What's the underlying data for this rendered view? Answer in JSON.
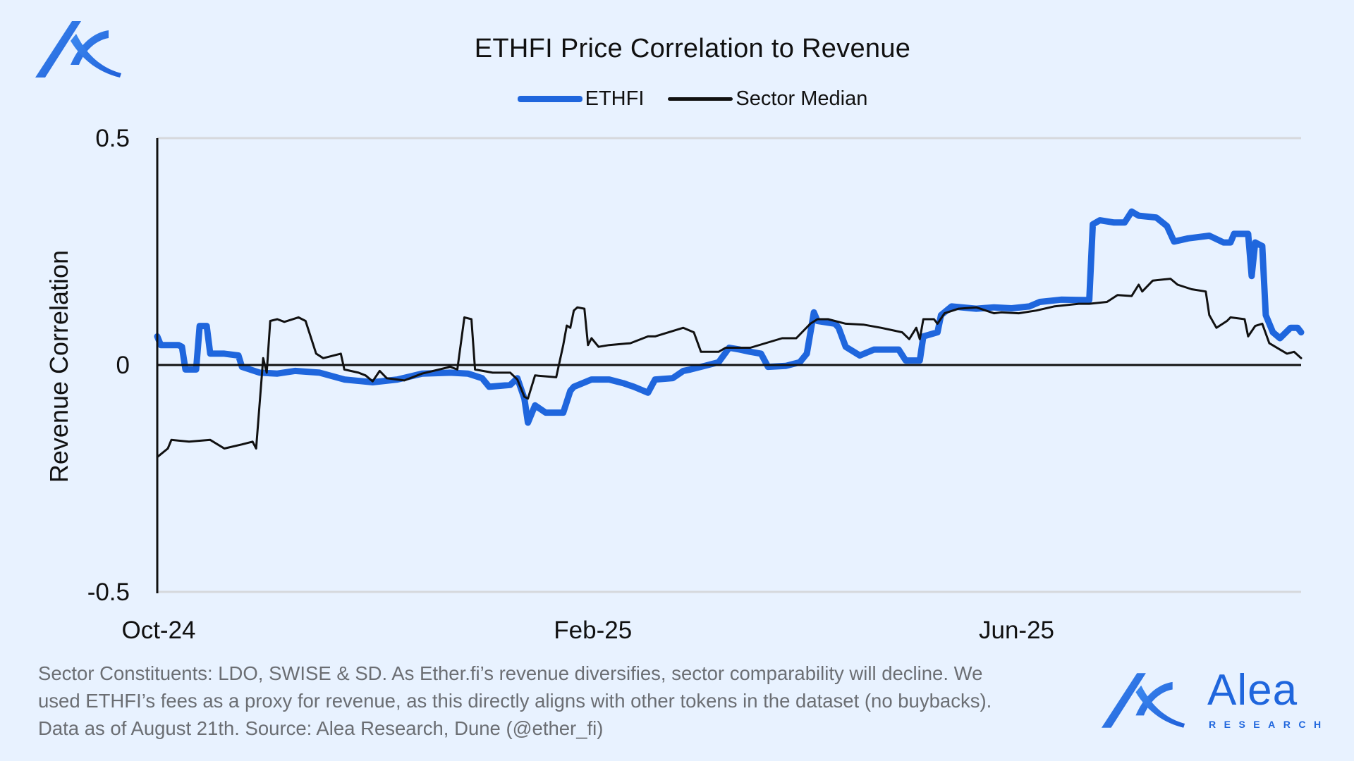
{
  "branding": {
    "name": "Alea",
    "subtitle": "RESEARCH",
    "accent_color": "#1f66dd",
    "logo_icon": "alea-logo-icon"
  },
  "footer": {
    "lines": [
      "Sector Constituents: LDO, SWISE & SD. As Ether.fi’s revenue diversifies, sector comparability will decline. We",
      "used ETHFI’s fees as a proxy for revenue, as this directly aligns with other tokens in the dataset (no buybacks).",
      "Data as of August 21th. Source: Alea Research, Dune (@ether_fi)"
    ]
  },
  "chart_data": {
    "type": "line",
    "title": "ETHFI Price Correlation to Revenue",
    "xlabel": "",
    "ylabel": "Revenue Correlation",
    "x_unit": "days since Oct 1, 2024",
    "xlim": [
      0,
      324
    ],
    "ylim": [
      -0.5,
      0.5
    ],
    "yticks": [
      {
        "value": 0.5,
        "label": "0.5"
      },
      {
        "value": 0,
        "label": "0"
      },
      {
        "value": -0.5,
        "label": "-0.5"
      }
    ],
    "xticks": [
      {
        "value": 0,
        "label": "Oct-24"
      },
      {
        "value": 123,
        "label": "Feb-25"
      },
      {
        "value": 243,
        "label": "Jun-25"
      }
    ],
    "grid": "horizontal",
    "legend_position": "top-center",
    "series": [
      {
        "name": "ETHFI",
        "color": "#1f66dd",
        "x": [
          0,
          1,
          6,
          7,
          8,
          11,
          12,
          14,
          15,
          19,
          23,
          24,
          29,
          34,
          39,
          46,
          53,
          61,
          68,
          75,
          83,
          88,
          92,
          94,
          100,
          102,
          104,
          105,
          107,
          110,
          115,
          117,
          118,
          123,
          128,
          132,
          135,
          139,
          141,
          146,
          149,
          151,
          155,
          159,
          162,
          165,
          168,
          171,
          173,
          178,
          182,
          184,
          186,
          187,
          192,
          193,
          195,
          199,
          203,
          210,
          212,
          216,
          217,
          221,
          222,
          225,
          232,
          237,
          242,
          247,
          250,
          256,
          264,
          265,
          267,
          271,
          274,
          276,
          278,
          283,
          286,
          288,
          292,
          298,
          302,
          304,
          305,
          309,
          310,
          311,
          313,
          314,
          316,
          318,
          321,
          323,
          324
        ],
        "values": [
          0.063,
          0.044,
          0.044,
          0.04,
          -0.01,
          -0.01,
          0.086,
          0.086,
          0.025,
          0.025,
          0.021,
          -0.004,
          -0.017,
          -0.019,
          -0.013,
          -0.017,
          -0.032,
          -0.038,
          -0.032,
          -0.019,
          -0.017,
          -0.019,
          -0.029,
          -0.048,
          -0.044,
          -0.029,
          -0.074,
          -0.127,
          -0.089,
          -0.105,
          -0.105,
          -0.057,
          -0.048,
          -0.032,
          -0.032,
          -0.04,
          -0.048,
          -0.061,
          -0.032,
          -0.029,
          -0.013,
          -0.01,
          -0.002,
          0.006,
          0.038,
          0.034,
          0.029,
          0.025,
          -0.004,
          -0.002,
          0.006,
          0.025,
          0.116,
          0.097,
          0.091,
          0.082,
          0.04,
          0.021,
          0.034,
          0.034,
          0.01,
          0.01,
          0.063,
          0.072,
          0.11,
          0.129,
          0.124,
          0.127,
          0.125,
          0.129,
          0.139,
          0.144,
          0.143,
          0.31,
          0.319,
          0.314,
          0.314,
          0.338,
          0.329,
          0.325,
          0.306,
          0.272,
          0.279,
          0.285,
          0.27,
          0.27,
          0.289,
          0.289,
          0.196,
          0.27,
          0.262,
          0.11,
          0.072,
          0.059,
          0.082,
          0.082,
          0.072
        ]
      },
      {
        "name": "Sector Median",
        "color": "#111111",
        "x": [
          0,
          3,
          4,
          9,
          15,
          19,
          24,
          27,
          28,
          30,
          31,
          32,
          34,
          36,
          40,
          42,
          45,
          47,
          52,
          53,
          57,
          59,
          61,
          63,
          65,
          70,
          75,
          83,
          85,
          87,
          89,
          90,
          95,
          100,
          102,
          104,
          105,
          107,
          113,
          115,
          116,
          117,
          118,
          119,
          121,
          122,
          123,
          125,
          128,
          134,
          139,
          141,
          149,
          152,
          154,
          159,
          161,
          168,
          177,
          181,
          185,
          187,
          190,
          195,
          200,
          205,
          211,
          213,
          215,
          216,
          217,
          220,
          221,
          223,
          227,
          232,
          237,
          239,
          244,
          249,
          254,
          261,
          264,
          269,
          272,
          276,
          278,
          279,
          282,
          287,
          289,
          293,
          297,
          298,
          300,
          303,
          304,
          308,
          309,
          311,
          313,
          315,
          318,
          320,
          322,
          324
        ],
        "values": [
          -0.203,
          -0.184,
          -0.165,
          -0.169,
          -0.165,
          -0.184,
          -0.175,
          -0.169,
          -0.184,
          0.015,
          -0.017,
          0.097,
          0.101,
          0.095,
          0.105,
          0.097,
          0.025,
          0.015,
          0.025,
          -0.01,
          -0.017,
          -0.023,
          -0.036,
          -0.013,
          -0.029,
          -0.034,
          -0.019,
          -0.004,
          -0.01,
          0.105,
          0.101,
          -0.01,
          -0.017,
          -0.017,
          -0.032,
          -0.07,
          -0.074,
          -0.023,
          -0.027,
          0.044,
          0.087,
          0.082,
          0.12,
          0.127,
          0.124,
          0.044,
          0.059,
          0.04,
          0.044,
          0.048,
          0.063,
          0.063,
          0.082,
          0.072,
          0.029,
          0.029,
          0.038,
          0.038,
          0.059,
          0.059,
          0.091,
          0.101,
          0.101,
          0.091,
          0.089,
          0.082,
          0.072,
          0.057,
          0.082,
          0.057,
          0.101,
          0.101,
          0.091,
          0.114,
          0.124,
          0.127,
          0.114,
          0.116,
          0.114,
          0.12,
          0.129,
          0.135,
          0.135,
          0.139,
          0.154,
          0.152,
          0.177,
          0.162,
          0.186,
          0.19,
          0.177,
          0.167,
          0.162,
          0.11,
          0.082,
          0.097,
          0.105,
          0.101,
          0.063,
          0.086,
          0.091,
          0.048,
          0.034,
          0.025,
          0.029,
          0.015
        ]
      }
    ]
  }
}
